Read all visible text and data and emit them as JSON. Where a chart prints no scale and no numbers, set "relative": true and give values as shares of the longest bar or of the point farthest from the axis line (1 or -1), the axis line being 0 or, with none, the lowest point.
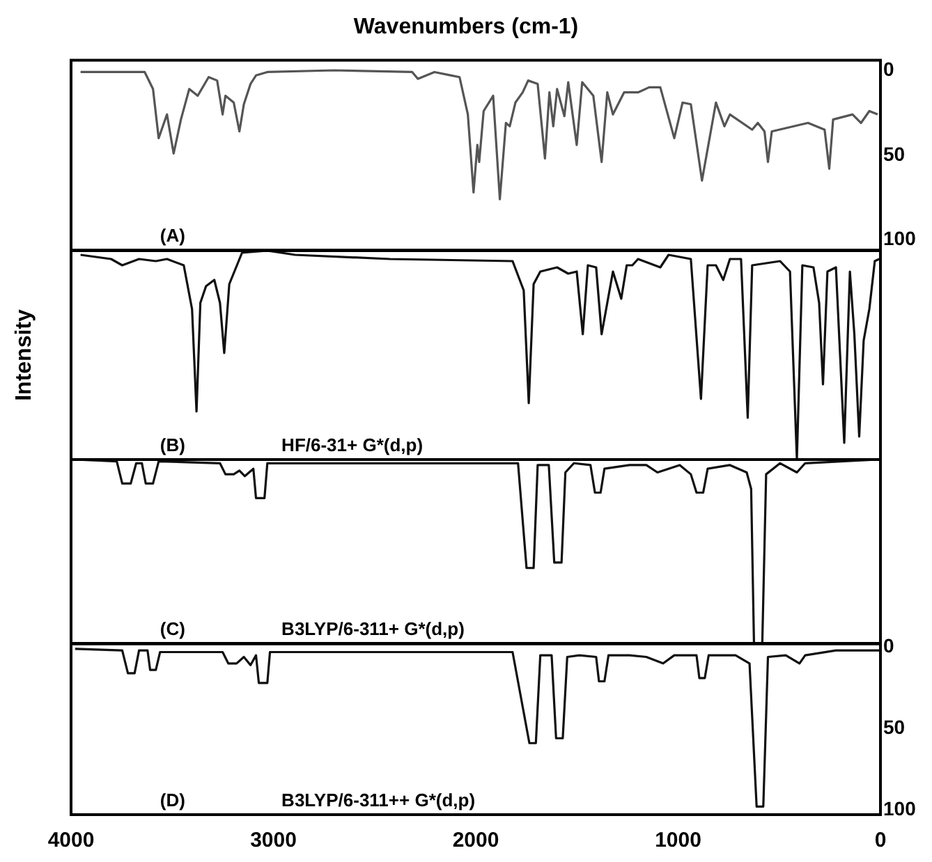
{
  "chart_data": [
    {
      "type": "line",
      "title": "Wavenumbers (cm-1)",
      "xlim": [
        4000,
        0
      ],
      "xticks": [
        4000,
        3000,
        2000,
        1000,
        0
      ],
      "ylim": [
        106,
        -6
      ],
      "yticks": [
        0,
        50,
        100
      ],
      "tick_labels": "y",
      "annotations": [
        "(A)"
      ],
      "series": [
        {
          "color": "#555555",
          "x": [
            3953,
            3636,
            3595,
            3567,
            3526,
            3493,
            3457,
            3416,
            3374,
            3320,
            3278,
            3251,
            3237,
            3196,
            3168,
            3146,
            3113,
            3086,
            3030,
            2700,
            2314,
            2286,
            2204,
            2121,
            2080,
            2039,
            2011,
            1992,
            1983,
            1961,
            1914,
            1881,
            1851,
            1832,
            1804,
            1768,
            1741,
            1694,
            1658,
            1636,
            1617,
            1598,
            1562,
            1543,
            1501,
            1474,
            1419,
            1378,
            1350,
            1322,
            1267,
            1198,
            1143,
            1088,
            1019,
            978,
            937,
            882,
            813,
            771,
            744,
            634,
            606,
            573,
            556,
            537,
            358,
            276,
            253,
            234,
            138,
            96,
            55,
            14
          ],
          "values": [
            1,
            1,
            11,
            40,
            26,
            49,
            29,
            11,
            15,
            4,
            6,
            26,
            15,
            19,
            36,
            20,
            8,
            3,
            1,
            0,
            1,
            5,
            1,
            3,
            4,
            26,
            72,
            44,
            54,
            24,
            15,
            76,
            31,
            33,
            19,
            13,
            6,
            8,
            52,
            13,
            33,
            11,
            27,
            7,
            44,
            7,
            15,
            54,
            13,
            26,
            13,
            13,
            10,
            10,
            40,
            19,
            20,
            65,
            19,
            33,
            26,
            35,
            31,
            36,
            54,
            36,
            31,
            35,
            58,
            29,
            26,
            31,
            24,
            26
          ]
        }
      ]
    },
    {
      "type": "line",
      "relative": true,
      "xlim": [
        4000,
        0
      ],
      "xticks": [
        4000,
        3000,
        2000,
        1000,
        0
      ],
      "tick_labels": false,
      "ylabel": "Intensity",
      "annotations": [
        "(B)",
        "HF/6-31+ G*(d,p)"
      ],
      "series": [
        {
          "color": "#111111",
          "x": [
            3953,
            3802,
            3747,
            3664,
            3581,
            3526,
            3443,
            3402,
            3380,
            3361,
            3333,
            3292,
            3264,
            3243,
            3218,
            3155,
            3030,
            2893,
            2424,
            1818,
            1763,
            1738,
            1714,
            1681,
            1598,
            1543,
            1501,
            1471,
            1446,
            1405,
            1378,
            1350,
            1322,
            1281,
            1254,
            1226,
            1198,
            1088,
            1047,
            937,
            887,
            854,
            813,
            777,
            744,
            689,
            656,
            634,
            496,
            447,
            413,
            386,
            331,
            303,
            284,
            262,
            220,
            179,
            151,
            129,
            105,
            83,
            55,
            28,
            6
          ],
          "values": [
            0.98,
            0.96,
            0.93,
            0.96,
            0.95,
            0.96,
            0.93,
            0.72,
            0.23,
            0.75,
            0.83,
            0.86,
            0.75,
            0.51,
            0.84,
            0.99,
            1,
            0.98,
            0.96,
            0.95,
            0.81,
            0.27,
            0.84,
            0.9,
            0.92,
            0.89,
            0.9,
            0.6,
            0.93,
            0.92,
            0.6,
            0.75,
            0.9,
            0.77,
            0.93,
            0.93,
            0.96,
            0.92,
            0.98,
            0.96,
            0.29,
            0.93,
            0.93,
            0.86,
            0.96,
            0.96,
            0.2,
            0.93,
            0.95,
            0.9,
            0,
            0.93,
            0.92,
            0.75,
            0.36,
            0.9,
            0.92,
            0.08,
            0.9,
            0.6,
            0.11,
            0.57,
            0.72,
            0.95,
            0.96
          ]
        }
      ]
    },
    {
      "type": "line",
      "relative": true,
      "xlim": [
        4000,
        0
      ],
      "xticks": [
        4000,
        3000,
        2000,
        1000,
        0
      ],
      "tick_labels": false,
      "annotations": [
        "(C)",
        "B3LYP/6-311+ G*(d,p)"
      ],
      "series": [
        {
          "color": "#111111",
          "x": [
            3980,
            3774,
            3747,
            3705,
            3678,
            3650,
            3631,
            3595,
            3567,
            3264,
            3237,
            3196,
            3168,
            3141,
            3099,
            3086,
            3044,
            3030,
            2424,
            1791,
            1749,
            1714,
            1694,
            1639,
            1612,
            1576,
            1557,
            1515,
            1433,
            1411,
            1383,
            1364,
            1240,
            1157,
            1102,
            992,
            937,
            909,
            876,
            854,
            744,
            661,
            639,
            625,
            584,
            565,
            496,
            413,
            372,
            14
          ],
          "values": [
            1,
            0.99,
            0.87,
            0.87,
            0.98,
            0.98,
            0.87,
            0.87,
            0.99,
            0.98,
            0.92,
            0.92,
            0.94,
            0.91,
            0.95,
            0.79,
            0.79,
            0.98,
            0.98,
            0.98,
            0.41,
            0.41,
            0.97,
            0.97,
            0.44,
            0.44,
            0.93,
            0.98,
            0.97,
            0.82,
            0.82,
            0.95,
            0.97,
            0.97,
            0.93,
            0.97,
            0.92,
            0.82,
            0.82,
            0.95,
            0.97,
            0.93,
            0.84,
            0,
            0,
            0.92,
            0.98,
            0.93,
            0.98,
            1
          ]
        }
      ]
    },
    {
      "type": "line",
      "xlim": [
        4000,
        0
      ],
      "xticks": [
        4000,
        3000,
        2000,
        1000,
        0
      ],
      "ylim": [
        103,
        -2
      ],
      "yticks": [
        0,
        50,
        100
      ],
      "annotations": [
        "(D)",
        "B3LYP/6-311++ G*(d,p)"
      ],
      "series": [
        {
          "color": "#111111",
          "x": [
            3980,
            3747,
            3719,
            3686,
            3664,
            3622,
            3609,
            3581,
            3560,
            3251,
            3223,
            3182,
            3146,
            3113,
            3086,
            3072,
            3030,
            3017,
            1818,
            1735,
            1703,
            1681,
            1625,
            1603,
            1570,
            1548,
            1488,
            1405,
            1391,
            1364,
            1344,
            1240,
            1157,
            1074,
            1019,
            909,
            895,
            868,
            849,
            716,
            647,
            612,
            579,
            556,
            468,
            400,
            372,
            220,
            6
          ],
          "values": [
            1,
            2,
            16,
            16,
            2,
            2,
            14,
            14,
            3,
            3,
            10,
            10,
            6,
            11,
            5,
            22,
            22,
            3,
            3,
            59,
            59,
            5,
            5,
            56,
            56,
            6,
            5,
            6,
            21,
            21,
            5,
            5,
            6,
            10,
            5,
            5,
            19,
            19,
            5,
            5,
            10,
            98,
            98,
            6,
            5,
            10,
            5,
            2,
            2
          ]
        }
      ]
    }
  ]
}
